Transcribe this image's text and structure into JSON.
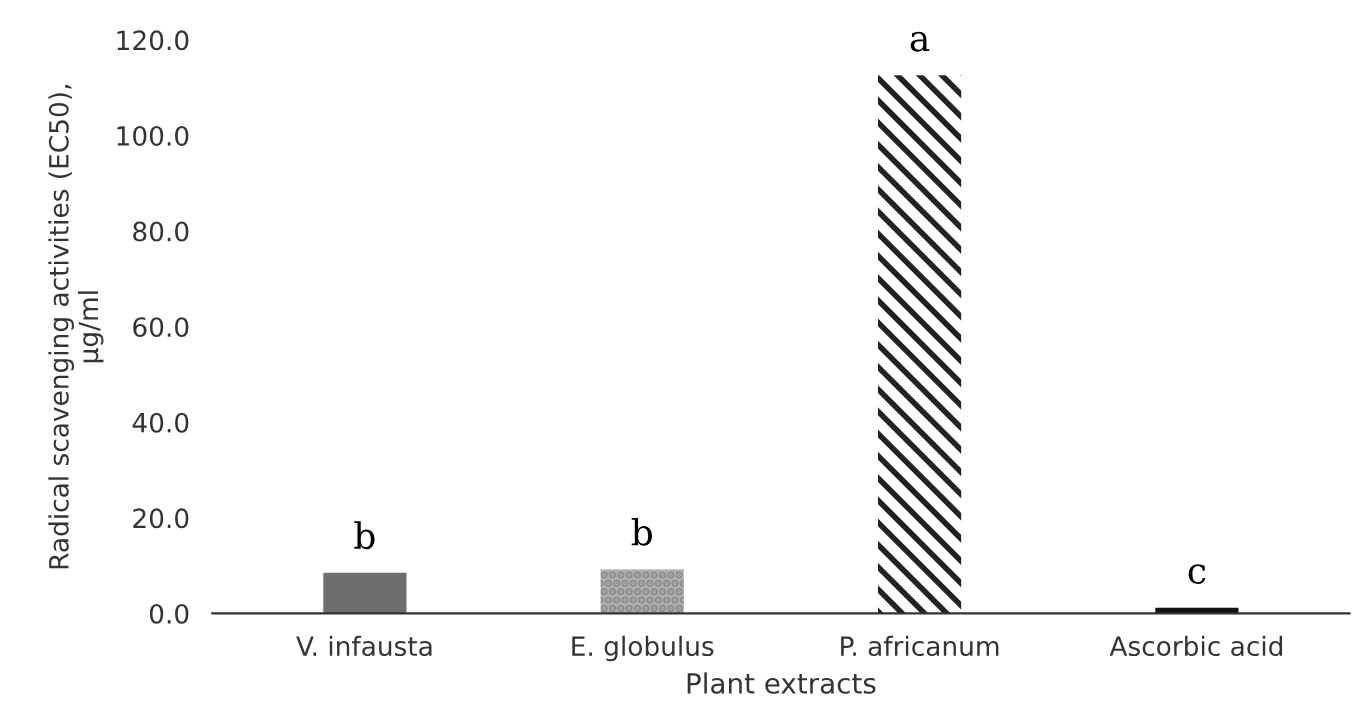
{
  "chart_data": {
    "type": "bar",
    "xlabel": "Plant extracts",
    "ylabel": "Radical scavenging activities (EC50),\nµg/ml",
    "categories": [
      "V. infausta",
      "E. globulus",
      "P. africanum",
      "Ascorbic acid"
    ],
    "values": [
      8.5,
      9.2,
      112.6,
      1.2
    ],
    "colors": [
      "#6e6e6e",
      "#b0b0b0",
      "#ffffff",
      "#111111"
    ],
    "ylim": [
      0,
      120
    ],
    "yticks": [
      {
        "value": 0,
        "label": "0.0"
      },
      {
        "value": 20,
        "label": "20.0"
      },
      {
        "value": 40,
        "label": "40.0"
      },
      {
        "value": 60,
        "label": "60.0"
      },
      {
        "value": 80,
        "label": "80.0"
      },
      {
        "value": 100,
        "label": "100.0"
      },
      {
        "value": 120,
        "label": "120.0"
      }
    ],
    "grid": false,
    "annotations": [
      {
        "text": "b",
        "x": "V. infausta",
        "y": 8.5
      },
      {
        "text": "b",
        "x": "E. globulus",
        "y": 9.2
      },
      {
        "text": "a",
        "x": "P. africanum",
        "y": 112.6
      },
      {
        "text": "c",
        "x": "Ascorbic acid",
        "y": 1.2
      }
    ]
  }
}
